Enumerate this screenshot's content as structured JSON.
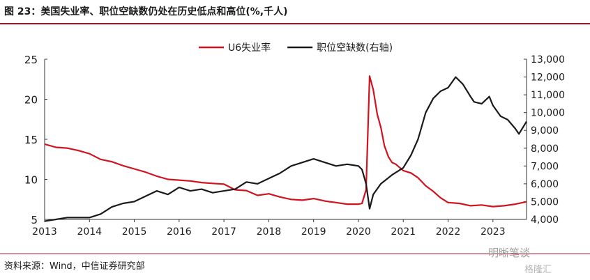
{
  "title": "图 23：美国失业率、职位空缺数仍处在历史低点和高位(%,千人)",
  "source": "资料来源：Wind，中信证券研究部",
  "watermark": "明晰笔谈",
  "watermark2": "格隆汇",
  "chart_data": {
    "type": "line",
    "title": "图 23：美国失业率、职位空缺数仍处在历史低点和高位(%,千人)",
    "legend_position": "top-center",
    "grid": false,
    "x_ticks": [
      "2013",
      "2014",
      "2015",
      "2016",
      "2017",
      "2018",
      "2019",
      "2020",
      "2021",
      "2022",
      "2023"
    ],
    "x_range": [
      2013.0,
      2023.75
    ],
    "y_left": {
      "range": [
        5,
        25
      ],
      "ticks": [
        "5",
        "10",
        "15",
        "20",
        "25"
      ]
    },
    "y_right": {
      "range": [
        4000,
        13000
      ],
      "ticks": [
        "4,000",
        "5,000",
        "6,000",
        "7,000",
        "8,000",
        "9,000",
        "10,000",
        "11,000",
        "12,000",
        "13,000"
      ]
    },
    "series": [
      {
        "name": "U6失业率",
        "axis": "left",
        "color": "#d0141f",
        "points": [
          [
            2013.0,
            14.4
          ],
          [
            2013.25,
            14.0
          ],
          [
            2013.5,
            13.9
          ],
          [
            2013.75,
            13.6
          ],
          [
            2014.0,
            13.2
          ],
          [
            2014.25,
            12.5
          ],
          [
            2014.5,
            12.2
          ],
          [
            2014.75,
            11.7
          ],
          [
            2015.0,
            11.3
          ],
          [
            2015.25,
            10.9
          ],
          [
            2015.5,
            10.4
          ],
          [
            2015.75,
            10.0
          ],
          [
            2016.0,
            9.9
          ],
          [
            2016.25,
            9.8
          ],
          [
            2016.5,
            9.6
          ],
          [
            2016.75,
            9.5
          ],
          [
            2017.0,
            9.4
          ],
          [
            2017.25,
            8.7
          ],
          [
            2017.5,
            8.6
          ],
          [
            2017.75,
            8.0
          ],
          [
            2018.0,
            8.2
          ],
          [
            2018.25,
            7.8
          ],
          [
            2018.5,
            7.5
          ],
          [
            2018.75,
            7.4
          ],
          [
            2019.0,
            7.6
          ],
          [
            2019.25,
            7.3
          ],
          [
            2019.5,
            7.1
          ],
          [
            2019.75,
            6.9
          ],
          [
            2020.0,
            6.9
          ],
          [
            2020.08,
            7.0
          ],
          [
            2020.17,
            8.7
          ],
          [
            2020.25,
            22.9
          ],
          [
            2020.33,
            21.2
          ],
          [
            2020.42,
            18.1
          ],
          [
            2020.5,
            16.5
          ],
          [
            2020.58,
            14.2
          ],
          [
            2020.67,
            12.8
          ],
          [
            2020.75,
            12.1
          ],
          [
            2020.83,
            11.9
          ],
          [
            2021.0,
            11.1
          ],
          [
            2021.17,
            10.8
          ],
          [
            2021.33,
            10.2
          ],
          [
            2021.5,
            9.2
          ],
          [
            2021.67,
            8.5
          ],
          [
            2021.83,
            7.7
          ],
          [
            2022.0,
            7.1
          ],
          [
            2022.25,
            7.0
          ],
          [
            2022.5,
            6.7
          ],
          [
            2022.75,
            6.8
          ],
          [
            2023.0,
            6.6
          ],
          [
            2023.25,
            6.7
          ],
          [
            2023.5,
            6.9
          ],
          [
            2023.75,
            7.2
          ]
        ]
      },
      {
        "name": "职位空缺数(右轴)",
        "axis": "right",
        "color": "#1a1a1a",
        "points": [
          [
            2013.0,
            3900
          ],
          [
            2013.25,
            4000
          ],
          [
            2013.5,
            4100
          ],
          [
            2013.75,
            4100
          ],
          [
            2014.0,
            4100
          ],
          [
            2014.25,
            4300
          ],
          [
            2014.5,
            4700
          ],
          [
            2014.75,
            4900
          ],
          [
            2015.0,
            5000
          ],
          [
            2015.25,
            5300
          ],
          [
            2015.5,
            5600
          ],
          [
            2015.75,
            5400
          ],
          [
            2016.0,
            5800
          ],
          [
            2016.25,
            5600
          ],
          [
            2016.5,
            5700
          ],
          [
            2016.75,
            5500
          ],
          [
            2017.0,
            5600
          ],
          [
            2017.25,
            5700
          ],
          [
            2017.5,
            6100
          ],
          [
            2017.75,
            6000
          ],
          [
            2018.0,
            6300
          ],
          [
            2018.25,
            6600
          ],
          [
            2018.5,
            7000
          ],
          [
            2018.75,
            7200
          ],
          [
            2019.0,
            7400
          ],
          [
            2019.25,
            7200
          ],
          [
            2019.5,
            7000
          ],
          [
            2019.75,
            7100
          ],
          [
            2020.0,
            7000
          ],
          [
            2020.08,
            6800
          ],
          [
            2020.17,
            6000
          ],
          [
            2020.25,
            4600
          ],
          [
            2020.33,
            5400
          ],
          [
            2020.5,
            6000
          ],
          [
            2020.75,
            6500
          ],
          [
            2021.0,
            6900
          ],
          [
            2021.17,
            7600
          ],
          [
            2021.33,
            8500
          ],
          [
            2021.5,
            10000
          ],
          [
            2021.67,
            10800
          ],
          [
            2021.83,
            11200
          ],
          [
            2022.0,
            11400
          ],
          [
            2022.17,
            12000
          ],
          [
            2022.33,
            11600
          ],
          [
            2022.5,
            10900
          ],
          [
            2022.58,
            10600
          ],
          [
            2022.75,
            10500
          ],
          [
            2022.92,
            10900
          ],
          [
            2023.0,
            10400
          ],
          [
            2023.17,
            9800
          ],
          [
            2023.33,
            9600
          ],
          [
            2023.5,
            9100
          ],
          [
            2023.58,
            8800
          ],
          [
            2023.75,
            9500
          ]
        ]
      }
    ]
  }
}
